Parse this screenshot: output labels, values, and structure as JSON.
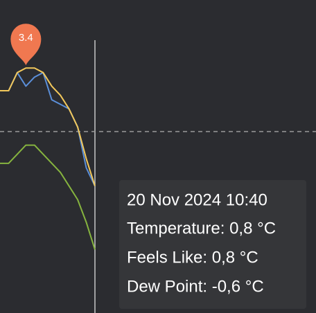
{
  "chart_data": {
    "type": "line",
    "categories": [
      null,
      null,
      null,
      null,
      null,
      null,
      null,
      null,
      null,
      null,
      null,
      null
    ],
    "series": [
      {
        "name": "Temperature",
        "color": "#f2c85b",
        "values": [
          2.9,
          2.9,
          3.3,
          3.4,
          3.4,
          3.3,
          3.0,
          2.8,
          2.5,
          2.1,
          1.4,
          0.8
        ]
      },
      {
        "name": "Feels Like",
        "color": "#5b8fd9",
        "values": [
          2.9,
          2.9,
          3.3,
          3.0,
          3.2,
          3.3,
          2.7,
          2.6,
          2.5,
          2.1,
          1.2,
          0.8
        ]
      },
      {
        "name": "Dew Point",
        "color": "#86b43f",
        "values": [
          1.3,
          1.3,
          1.5,
          1.7,
          1.7,
          1.5,
          1.3,
          1.1,
          0.8,
          0.5,
          0.0,
          -0.6
        ]
      }
    ],
    "ylim": [
      -2,
      4.9
    ],
    "reference_line": 2,
    "marker_color": "#f07850",
    "tooltip": {
      "title": "20 Nov 2024 10:40",
      "lines": [
        "Temperature: 0,8 °C",
        "Feels Like: 0,8 °C",
        "Dew Point: -0,6 °C"
      ]
    }
  }
}
